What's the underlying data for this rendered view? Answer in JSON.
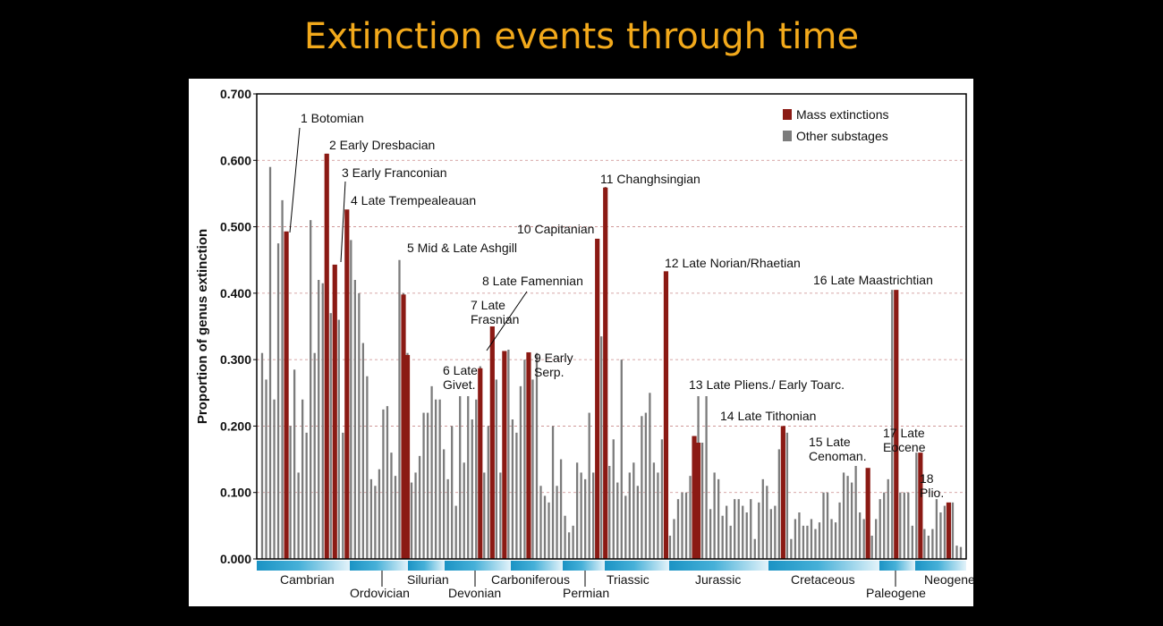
{
  "page": {
    "title": "Extinction events through time"
  },
  "chart_data": {
    "type": "bar",
    "ylabel": "Proportion of genus extinction",
    "ylim": [
      0,
      0.7
    ],
    "yticks": [
      "0.000",
      "0.100",
      "0.200",
      "0.300",
      "0.400",
      "0.500",
      "0.600",
      "0.700"
    ],
    "grid": true,
    "legend": [
      {
        "name": "Mass extinctions",
        "color": "#8b1a14"
      },
      {
        "name": "Other substages",
        "color": "#7c7c7c"
      }
    ],
    "series": [
      {
        "name": "Other substages",
        "color": "#7c7c7c",
        "values": [
          0.31,
          0.27,
          0.59,
          0.24,
          0.475,
          0.54,
          0.49,
          0.2,
          0.285,
          0.13,
          0.24,
          0.19,
          0.51,
          0.31,
          0.42,
          0.415,
          0.61,
          0.37,
          0.44,
          0.36,
          0.19,
          0.525,
          0.48,
          0.42,
          0.4,
          0.325,
          0.275,
          0.12,
          0.11,
          0.135,
          0.225,
          0.23,
          0.16,
          0.125,
          0.45,
          0.4,
          0.31,
          0.115,
          0.13,
          0.155,
          0.22,
          0.22,
          0.26,
          0.24,
          0.24,
          0.165,
          0.12,
          0.2,
          0.08,
          0.245,
          0.145,
          0.245,
          0.21,
          0.24,
          0.29,
          0.13,
          0.2,
          0.35,
          0.27,
          0.13,
          0.22,
          0.315,
          0.21,
          0.19,
          0.26,
          0.3,
          0.31,
          0.27,
          0.31,
          0.11,
          0.095,
          0.085,
          0.2,
          0.11,
          0.15,
          0.065,
          0.04,
          0.05,
          0.145,
          0.13,
          0.12,
          0.22,
          0.13,
          0.48,
          0.335,
          0.56,
          0.14,
          0.18,
          0.115,
          0.3,
          0.095,
          0.13,
          0.145,
          0.11,
          0.215,
          0.22,
          0.25,
          0.145,
          0.13,
          0.18,
          0.43,
          0.035,
          0.06,
          0.09,
          0.1,
          0.1,
          0.125,
          0.185,
          0.245,
          0.175,
          0.245,
          0.075,
          0.13,
          0.12,
          0.065,
          0.08,
          0.05,
          0.09,
          0.09,
          0.08,
          0.07,
          0.09,
          0.03,
          0.085,
          0.12,
          0.11,
          0.075,
          0.08,
          0.165,
          0.2,
          0.19,
          0.03,
          0.06,
          0.07,
          0.05,
          0.05,
          0.06,
          0.045,
          0.055,
          0.1,
          0.1,
          0.06,
          0.055,
          0.085,
          0.13,
          0.125,
          0.115,
          0.14,
          0.07,
          0.06,
          0.03,
          0.035,
          0.06,
          0.09,
          0.1,
          0.12,
          0.405,
          0.115,
          0.1,
          0.1,
          0.1,
          0.05,
          0.16,
          0.075,
          0.045,
          0.035,
          0.045,
          0.09,
          0.07,
          0.08,
          0.03,
          0.085,
          0.02,
          0.018
        ]
      },
      {
        "name": "Mass extinctions",
        "color": "#8b1a14",
        "points": [
          {
            "index": 6,
            "value": 0.493
          },
          {
            "index": 16,
            "value": 0.61
          },
          {
            "index": 18,
            "value": 0.443
          },
          {
            "index": 21,
            "value": 0.526
          },
          {
            "index": 35,
            "value": 0.398
          },
          {
            "index": 36,
            "value": 0.307
          },
          {
            "index": 54,
            "value": 0.287
          },
          {
            "index": 57,
            "value": 0.35
          },
          {
            "index": 60,
            "value": 0.313
          },
          {
            "index": 66,
            "value": 0.311
          },
          {
            "index": 83,
            "value": 0.482
          },
          {
            "index": 85,
            "value": 0.559
          },
          {
            "index": 100,
            "value": 0.433
          },
          {
            "index": 107,
            "value": 0.185
          },
          {
            "index": 108,
            "value": 0.175
          },
          {
            "index": 129,
            "value": 0.2
          },
          {
            "index": 150,
            "value": 0.137
          },
          {
            "index": 157,
            "value": 0.405
          },
          {
            "index": 163,
            "value": 0.16
          },
          {
            "index": 170,
            "value": 0.085
          }
        ]
      }
    ],
    "annotations": [
      {
        "lines": [
          "1 Botomian"
        ]
      },
      {
        "lines": [
          "2 Early Dresbacian"
        ]
      },
      {
        "lines": [
          "3 Early Franconian"
        ]
      },
      {
        "lines": [
          "4 Late Trempealeauan"
        ]
      },
      {
        "lines": [
          "5 Mid & Late Ashgill"
        ]
      },
      {
        "lines": [
          "6 Late",
          "Givet."
        ]
      },
      {
        "lines": [
          "7 Late",
          "Frasnian"
        ]
      },
      {
        "lines": [
          "8 Late Famennian"
        ]
      },
      {
        "lines": [
          "9 Early",
          "Serp."
        ]
      },
      {
        "lines": [
          "10 Capitanian"
        ]
      },
      {
        "lines": [
          "11 Changhsingian"
        ]
      },
      {
        "lines": [
          "12 Late Norian/Rhaetian"
        ]
      },
      {
        "lines": [
          "13 Late Pliens./ Early Toarc."
        ]
      },
      {
        "lines": [
          "14 Late Tithonian"
        ]
      },
      {
        "lines": [
          "15 Late",
          "Cenoman."
        ]
      },
      {
        "lines": [
          "16 Late Maastrichtian"
        ]
      },
      {
        "lines": [
          "17 Late",
          "Eocene"
        ]
      },
      {
        "lines": [
          "18",
          "Plio."
        ]
      }
    ],
    "periods": [
      "Cambrian",
      "Ordovician",
      "Silurian",
      "Devonian",
      "Carboniferous",
      "Permian",
      "Triassic",
      "Jurassic",
      "Cretaceous",
      "Paleogene",
      "Neogene"
    ]
  }
}
